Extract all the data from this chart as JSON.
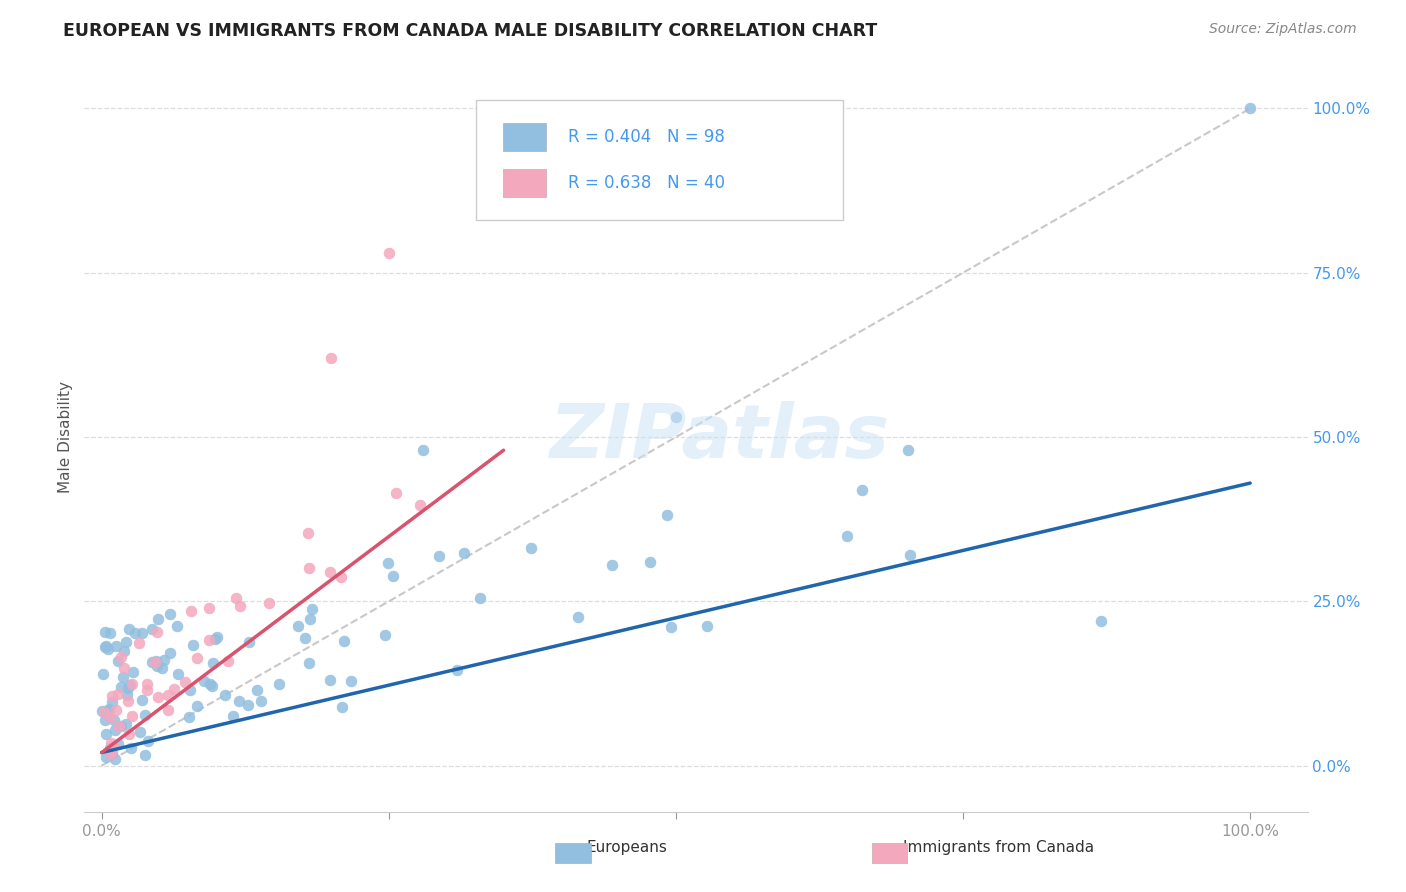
{
  "title": "EUROPEAN VS IMMIGRANTS FROM CANADA MALE DISABILITY CORRELATION CHART",
  "source": "Source: ZipAtlas.com",
  "ylabel": "Male Disability",
  "european_color": "#92bfdf",
  "european_edge_color": "#92bfdf",
  "canada_color": "#f4a8be",
  "canada_edge_color": "#f4a8be",
  "european_line_color": "#2166ac",
  "canada_line_color": "#d9536e",
  "diagonal_line_color": "#bbbbbb",
  "R_european": 0.404,
  "N_european": 98,
  "R_canada": 0.638,
  "N_canada": 40,
  "legend_label_european": "Europeans",
  "legend_label_canada": "Immigrants from Canada",
  "watermark": "ZIPatlas",
  "title_color": "#222222",
  "source_color": "#888888",
  "right_tick_color": "#4499ee",
  "ylabel_color": "#555555",
  "bottom_label_color": "#333333"
}
